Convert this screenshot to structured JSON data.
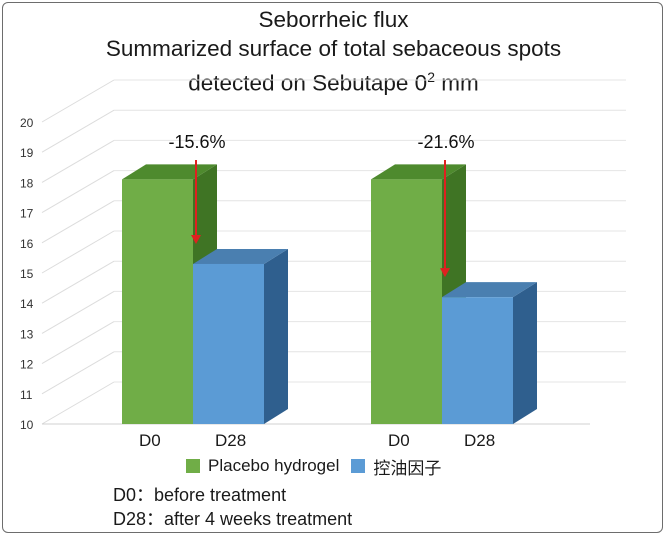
{
  "chart_data": {
    "type": "bar",
    "title_lines": [
      "Seborrheic flux",
      "Summarized surface of total sebaceous spots",
      "detected on Sebutape 0",
      "mm"
    ],
    "title_superscript": "2",
    "groups": [
      {
        "bars": [
          {
            "label": "D0",
            "value": 18.1,
            "series": 0
          },
          {
            "label": "D28",
            "value": 15.3,
            "series": 1
          }
        ],
        "annotation": "-15.6%"
      },
      {
        "bars": [
          {
            "label": "D0",
            "value": 18.1,
            "series": 0
          },
          {
            "label": "D28",
            "value": 14.2,
            "series": 1
          }
        ],
        "annotation": "-21.6%"
      }
    ],
    "series": [
      {
        "name": "Placebo hydrogel",
        "color": "#70ad47"
      },
      {
        "name": "控油因子",
        "color": "#5b9bd5"
      }
    ],
    "y_ticks": [
      "10",
      "11",
      "12",
      "13",
      "14",
      "15",
      "16",
      "17",
      "18",
      "19",
      "20"
    ],
    "ylim": [
      10,
      20
    ],
    "grid": true,
    "three_d": true,
    "legend_position": "bottom"
  },
  "notes": [
    "D0：before treatment",
    "D28：after 4 weeks treatment"
  ],
  "colors": {
    "arrow": "#e02020",
    "grid": "#d9d9d9"
  }
}
